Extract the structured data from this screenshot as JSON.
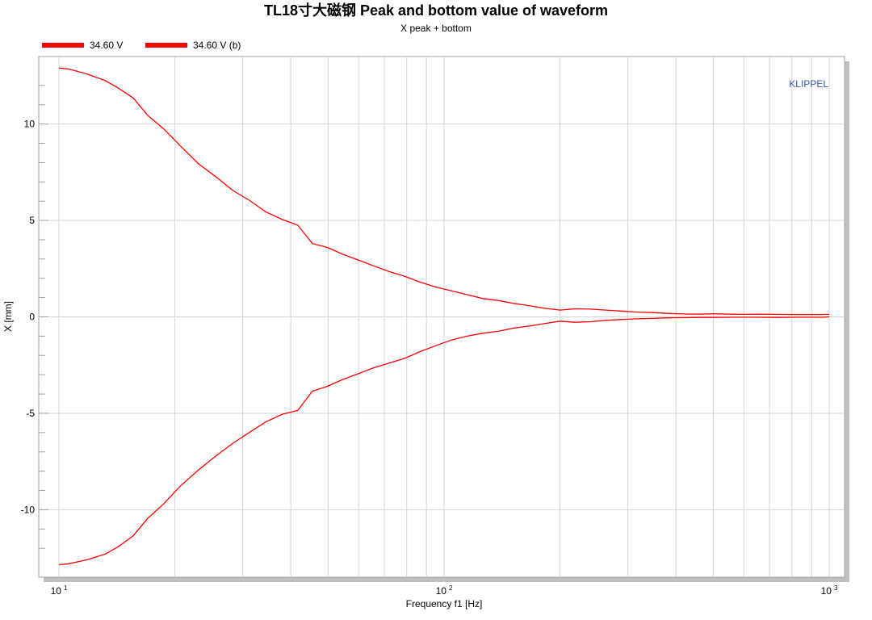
{
  "chart_data": {
    "type": "line",
    "title": "TL18寸大磁钢 Peak and bottom value of waveform",
    "subtitle": "X  peak + bottom",
    "xlabel": "Frequency f1  [Hz]",
    "ylabel": "X  [mm]",
    "watermark": "KLIPPEL",
    "x_scale": "log",
    "xlim": [
      10,
      1000
    ],
    "ylim": [
      -13.5,
      13.5
    ],
    "grid": true,
    "legend_position": "top-left",
    "x_ticks": [
      {
        "value": 10,
        "base": "10",
        "exp": "1"
      },
      {
        "value": 100,
        "base": "10",
        "exp": "2"
      },
      {
        "value": 1000,
        "base": "10",
        "exp": "3"
      }
    ],
    "y_ticks": [
      {
        "value": 10,
        "label": "10"
      },
      {
        "value": 5,
        "label": "5"
      },
      {
        "value": 0,
        "label": "0"
      },
      {
        "value": -5,
        "label": "-5"
      },
      {
        "value": -10,
        "label": "-10"
      }
    ],
    "series": [
      {
        "name": "34.60 V",
        "color": "#ff0000",
        "x": [
          10,
          10.6,
          11.8,
          13.2,
          14.3,
          15.6,
          17,
          18.7,
          20.6,
          23,
          25.6,
          28.3,
          31.2,
          34.4,
          38,
          41.7,
          45.5,
          49.8,
          54.5,
          59.8,
          65.5,
          72,
          79,
          86.7,
          95,
          104.5,
          114.8,
          126,
          138,
          151.5,
          166,
          182,
          200,
          219,
          240,
          263,
          288,
          316,
          347,
          381,
          417,
          457,
          502,
          550,
          603,
          662,
          726,
          796,
          873,
          958,
          1000
        ],
        "y": [
          12.9,
          12.85,
          12.6,
          12.25,
          11.85,
          11.35,
          10.45,
          9.75,
          8.9,
          7.95,
          7.25,
          6.55,
          6.05,
          5.45,
          5.05,
          4.75,
          3.8,
          3.6,
          3.25,
          2.95,
          2.65,
          2.35,
          2.1,
          1.8,
          1.55,
          1.35,
          1.15,
          0.95,
          0.85,
          0.7,
          0.58,
          0.45,
          0.35,
          0.42,
          0.4,
          0.35,
          0.3,
          0.25,
          0.22,
          0.18,
          0.15,
          0.14,
          0.16,
          0.14,
          0.13,
          0.14,
          0.13,
          0.12,
          0.12,
          0.12,
          0.13
        ]
      },
      {
        "name": "34.60 V (b)",
        "color": "#ff0000",
        "x": [
          10,
          10.6,
          11.8,
          13.2,
          14.3,
          15.6,
          17,
          18.7,
          20.6,
          23,
          25.6,
          28.3,
          31.2,
          34.4,
          38,
          41.7,
          45.5,
          49.8,
          54.5,
          59.8,
          65.5,
          72,
          79,
          86.7,
          95,
          104.5,
          114.8,
          126,
          138,
          151.5,
          166,
          182,
          200,
          219,
          240,
          263,
          288,
          316,
          347,
          381,
          417,
          457,
          502,
          550,
          603,
          662,
          726,
          796,
          873,
          958,
          1000
        ],
        "y": [
          -12.85,
          -12.8,
          -12.6,
          -12.3,
          -11.9,
          -11.35,
          -10.45,
          -9.7,
          -8.8,
          -7.95,
          -7.2,
          -6.55,
          -6.0,
          -5.45,
          -5.05,
          -4.85,
          -3.85,
          -3.6,
          -3.25,
          -2.95,
          -2.65,
          -2.4,
          -2.15,
          -1.8,
          -1.5,
          -1.2,
          -1.0,
          -0.85,
          -0.75,
          -0.58,
          -0.48,
          -0.35,
          -0.22,
          -0.28,
          -0.25,
          -0.18,
          -0.14,
          -0.1,
          -0.08,
          -0.05,
          -0.04,
          -0.03,
          -0.03,
          -0.02,
          -0.02,
          -0.02,
          -0.03,
          -0.02,
          -0.02,
          -0.02,
          0.0
        ]
      }
    ]
  }
}
